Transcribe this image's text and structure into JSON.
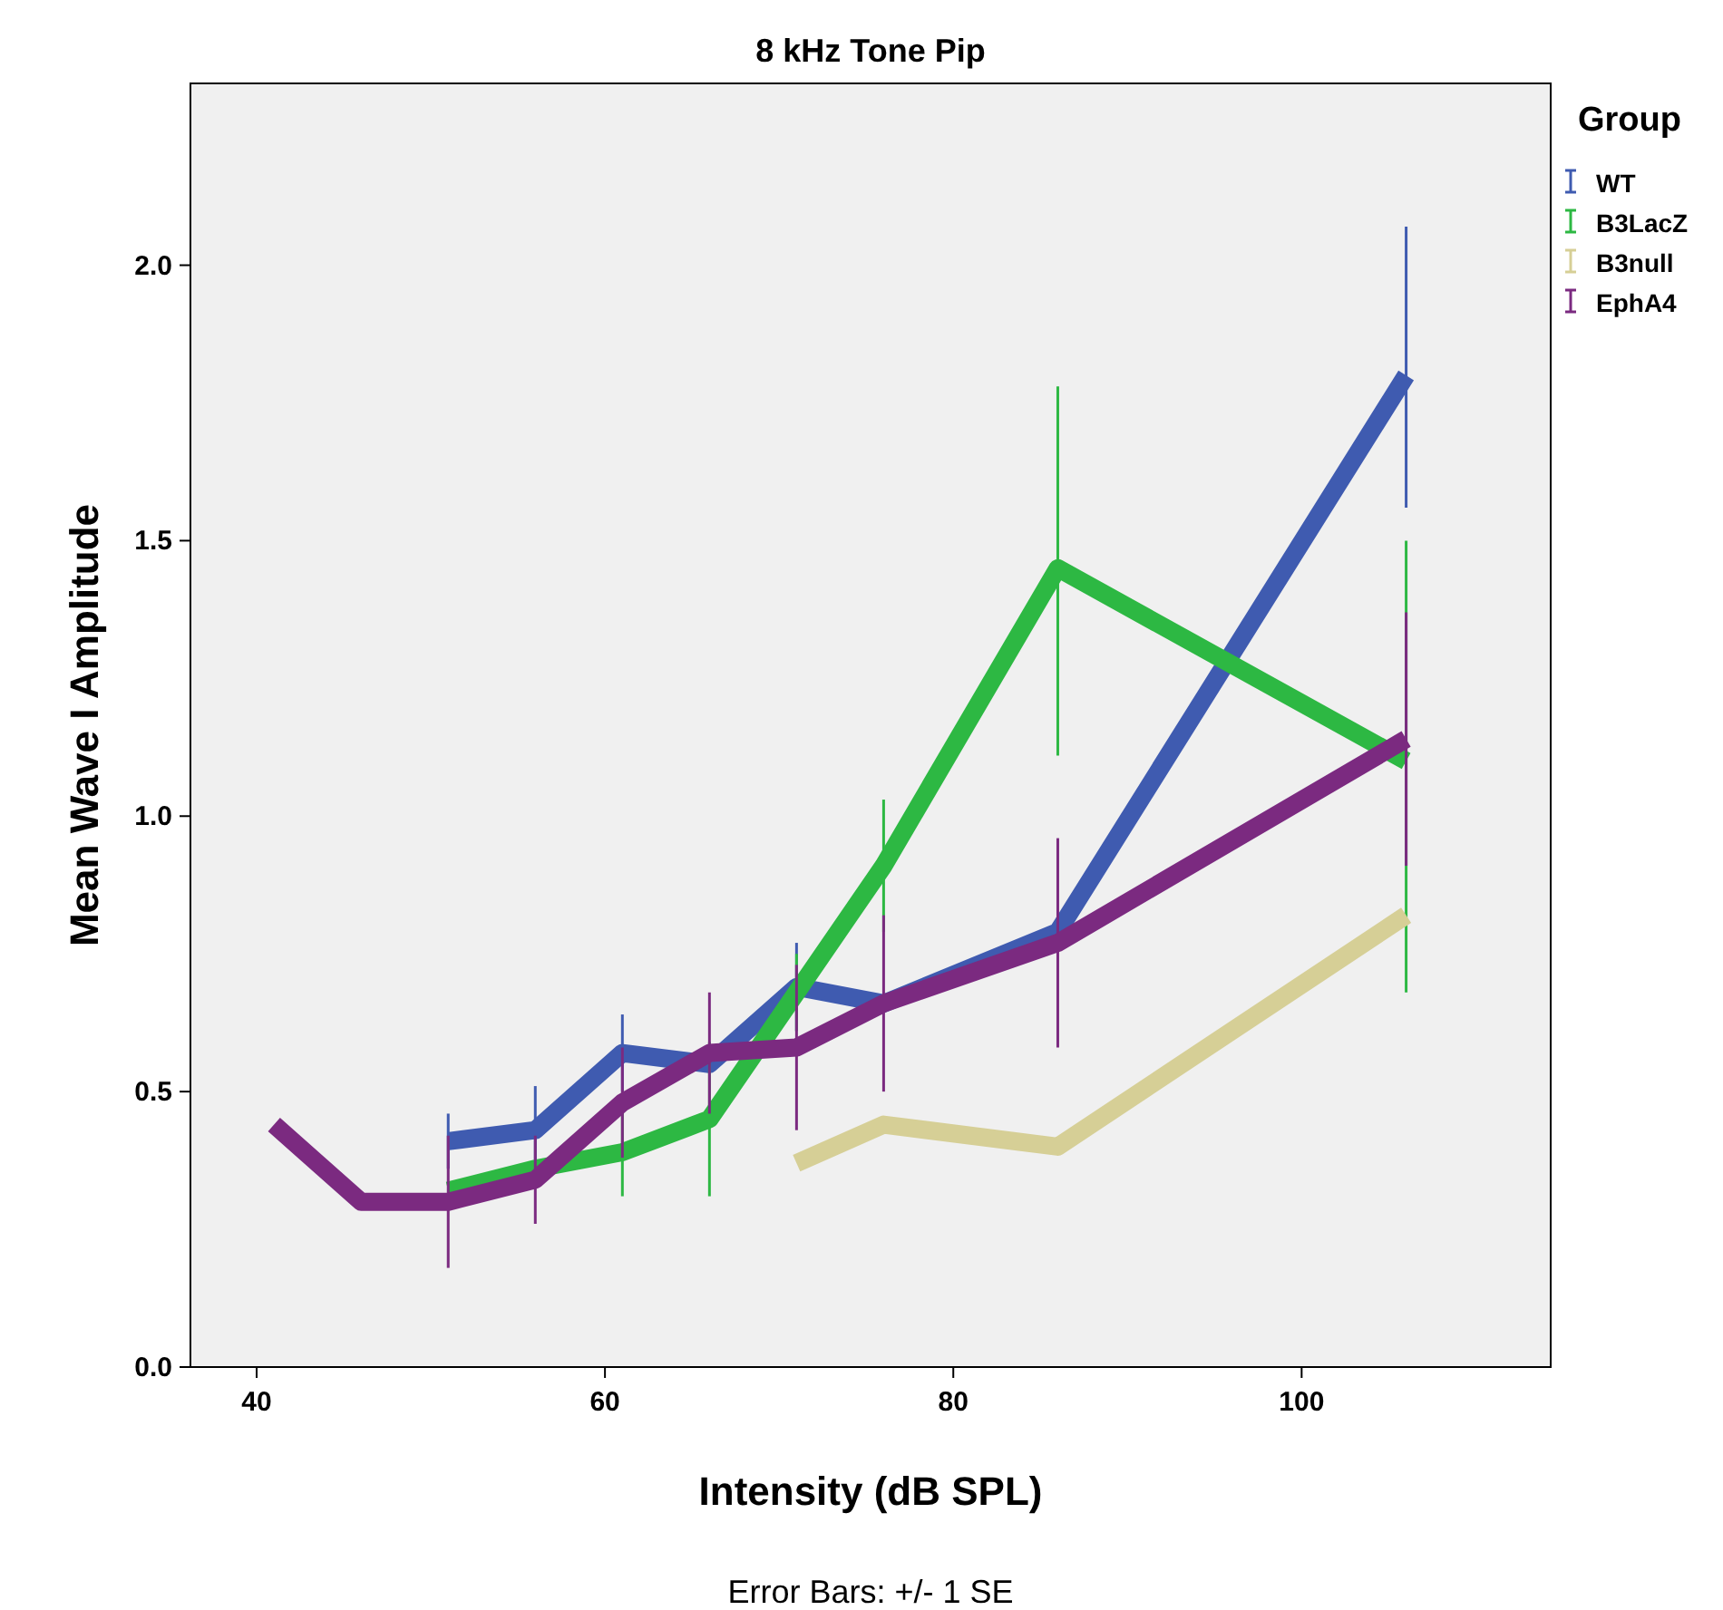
{
  "chart_data": {
    "type": "line",
    "title": "8 kHz Tone Pip",
    "xlabel": "Intensity (dB SPL)",
    "ylabel": "Mean Wave I Amplitude",
    "legend_title": "Group",
    "annotations": [
      "Error Bars: +/- 1 SE"
    ],
    "xlim": [
      36.2,
      114.3
    ],
    "xticks": [
      40,
      60,
      80,
      100
    ],
    "ylim": [
      0,
      2.33
    ],
    "yticks": [
      {
        "value": 0,
        "label": "0.0"
      },
      0.5,
      {
        "value": 1,
        "label": "1.0"
      },
      1.5,
      {
        "value": 2,
        "label": "2.0"
      }
    ],
    "grid": false,
    "legend": "top right",
    "marker": "none",
    "line_style": "solid",
    "series": [
      {
        "name": "WT",
        "color": "#3f5bb0",
        "x": [
          51,
          56,
          61,
          66,
          71,
          76,
          86,
          106
        ],
        "values": [
          0.41,
          0.43,
          0.57,
          0.55,
          0.69,
          0.66,
          0.79,
          1.8
        ],
        "errors": [
          0.05,
          0.08,
          0.07,
          null,
          0.08,
          null,
          null,
          [
            1.56,
            2.07
          ]
        ]
      },
      {
        "name": "B3LacZ",
        "color": "#2db843",
        "x": [
          51,
          56,
          61,
          66,
          71,
          76,
          86,
          106
        ],
        "values": [
          0.32,
          0.36,
          0.39,
          0.45,
          0.68,
          0.91,
          1.45,
          1.1
        ],
        "errors": [
          null,
          null,
          0.08,
          0.14,
          0.07,
          0.12,
          [
            1.11,
            1.78
          ],
          [
            0.68,
            1.5
          ]
        ]
      },
      {
        "name": "B3null",
        "color": "#d6cf96",
        "x": [
          71,
          76,
          86,
          106
        ],
        "values": [
          0.37,
          0.44,
          0.4,
          0.82
        ],
        "errors": [
          null,
          null,
          null,
          null
        ]
      },
      {
        "name": "EphA4",
        "color": "#7b2a80",
        "x": [
          41,
          46,
          51,
          56,
          61,
          66,
          71,
          76,
          86,
          106
        ],
        "values": [
          0.44,
          0.3,
          0.3,
          0.34,
          0.48,
          0.57,
          0.58,
          0.66,
          0.77,
          1.14
        ],
        "errors": [
          null,
          null,
          0.12,
          0.08,
          0.1,
          0.11,
          0.15,
          0.16,
          0.19,
          0.23
        ]
      }
    ]
  }
}
